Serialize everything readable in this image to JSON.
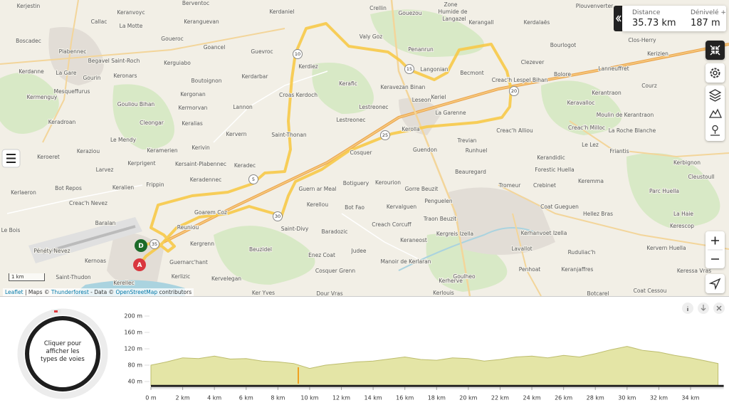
{
  "map": {
    "places": [
      "Kerjestin",
      "Keranvoyc",
      "Berventoc",
      "Kerdaniel",
      "Crellin",
      "Gouezou",
      "Zone",
      "Humide de",
      "Langazel",
      "Plouvenverter",
      "Callac",
      "Keranguevan",
      "Valy Goz",
      "Kerangall",
      "Kerdalaës",
      "Boscadec",
      "La Motte",
      "Goueroc",
      "Goancel",
      "Guevroc",
      "Penanrun",
      "Bourlogot",
      "Clos-Herry",
      "Plabennec",
      "Begavel Saint-Roch",
      "Kerguiabo",
      "Langonian",
      "Clezever",
      "Kerizien",
      "La Gare",
      "Kerdanne",
      "Gourin",
      "Keronars",
      "Boutoignon",
      "Kerdarbar",
      "Kerdiez",
      "Becmont",
      "Lanneuffret",
      "Bolore",
      "Mesqueffurus",
      "Kerafic",
      "Keravezan Binan",
      "Creac'h Lespel Bihan",
      "Courz",
      "Kermenguy",
      "Gouliou Bihan",
      "Kergonan",
      "Croas Kerdoch",
      "Leseon",
      "Keriel",
      "Lestreonec",
      "Keravalloc",
      "Kerantraon",
      "Kermorvan",
      "Lannon",
      "La Garenne",
      "Lestreonec",
      "Moulin de Kerantraon",
      "Keradroan",
      "Cleongar",
      "Keralias",
      "Creac'h Alliou",
      "Creac'h Milloc",
      "Kervern",
      "Saint-Thonan",
      "Kerolla",
      "Trevian",
      "La Roche Blanche",
      "Keraziou",
      "Le Mendy",
      "Kerivin",
      "Guendon",
      "Runhuel",
      "Le Lez",
      "Friantis",
      "Keroeret",
      "Keramerien",
      "Cosquer",
      "Kerandidic",
      "Kerbignon",
      "Kerprigent",
      "Kersaint-Plabennec",
      "Keradec",
      "Beauregard",
      "Forestic Huella",
      "Cleustoull",
      "Larvez",
      "Keradennec",
      "Botiguery",
      "Kerourion",
      "Crebinet",
      "Keremma",
      "Bot Repos",
      "Keralien",
      "Frippin",
      "Guern ar Meal",
      "Gorre Beuzit",
      "Tromeur",
      "Parc Huella",
      "Kerlaeron",
      "Creac'h Nevez",
      "Goarem Coz",
      "Kerellou",
      "Bot Fao",
      "Kervalguen",
      "Penguelen",
      "Coat Gueguen",
      "La Haie",
      "Baralan",
      "Reuniou",
      "Saint-Divy",
      "Creach Corcuff",
      "Traon Beuzit",
      "Kergreis Izella",
      "Kerhanvoet Izella",
      "Hellez Bras",
      "Le Bois",
      "Kerescop",
      "Baradozic",
      "Kergrenn",
      "Beuzidel",
      "Judee",
      "Keraneost",
      "Lavallot",
      "Ruduliac'h",
      "Kervern Huella",
      "Pénéty Nevez",
      "Kernoas",
      "Guernarc'hant",
      "Enez Coat",
      "Manoir de Kerlaran",
      "Penhoat",
      "Keranjaffres",
      "Keressa Vras",
      "Saint-Thudon",
      "Kerlizic",
      "Kervelegan",
      "Cosquer Grenn",
      "Goulheo",
      "Kerherve",
      "Kerellec",
      "Ker Yves",
      "Dour Vras",
      "Kerlouis",
      "Botcarel",
      "Coat Cessou"
    ],
    "km_markers": [
      "5",
      "10",
      "15",
      "20",
      "25",
      "30",
      "35"
    ],
    "start_marker": "D",
    "end_marker": "A",
    "scale": "1 km",
    "attribution": [
      "Leaflet",
      "| Maps ©",
      "Thunderforest",
      "- Data ©",
      "OpenStreetMap",
      "contributors"
    ]
  },
  "stats": {
    "distance_label": "Distance",
    "distance": "35.73 km",
    "gain_label": "Dénivelé +",
    "gain": "187 m"
  },
  "road_types_button": [
    "Cliquer pour",
    "afficher les",
    "types de voies"
  ],
  "chart_data": {
    "type": "area",
    "color": "#e4e5a6",
    "x": [
      0,
      1,
      2,
      3,
      4,
      5,
      6,
      7,
      8,
      9,
      10,
      11,
      12,
      13,
      14,
      15,
      16,
      17,
      18,
      19,
      20,
      21,
      22,
      23,
      24,
      25,
      26,
      27,
      28,
      29,
      30,
      31,
      32,
      33,
      34,
      35,
      35.73
    ],
    "values": [
      80,
      88,
      98,
      96,
      102,
      95,
      96,
      90,
      88,
      84,
      72,
      80,
      84,
      88,
      90,
      95,
      100,
      94,
      92,
      98,
      96,
      90,
      94,
      100,
      102,
      98,
      104,
      100,
      108,
      118,
      126,
      116,
      112,
      104,
      98,
      90,
      84
    ],
    "xlim": [
      0,
      36
    ],
    "ylim": [
      30,
      200
    ],
    "xticks": [
      {
        "value": 0,
        "label": "0 m"
      },
      {
        "value": 2,
        "label": "2 km"
      },
      {
        "value": 4,
        "label": "4 km"
      },
      {
        "value": 6,
        "label": "6 km"
      },
      {
        "value": 8,
        "label": "8 km"
      },
      {
        "value": 10,
        "label": "10 km"
      },
      {
        "value": 12,
        "label": "12 km"
      },
      {
        "value": 14,
        "label": "14 km"
      },
      {
        "value": 16,
        "label": "16 km"
      },
      {
        "value": 18,
        "label": "18 km"
      },
      {
        "value": 20,
        "label": "20 km"
      },
      {
        "value": 22,
        "label": "22 km"
      },
      {
        "value": 24,
        "label": "24 km"
      },
      {
        "value": 26,
        "label": "26 km"
      },
      {
        "value": 28,
        "label": "28 km"
      },
      {
        "value": 30,
        "label": "30 km"
      },
      {
        "value": 32,
        "label": "32 km"
      },
      {
        "value": 34,
        "label": "34 km"
      }
    ],
    "yticks": [
      {
        "value": 40,
        "label": "40 m"
      },
      {
        "value": 80,
        "label": "80 m"
      },
      {
        "value": 120,
        "label": "120 m"
      },
      {
        "value": 160,
        "label": "160 m"
      },
      {
        "value": 200,
        "label": "200 m"
      }
    ]
  }
}
